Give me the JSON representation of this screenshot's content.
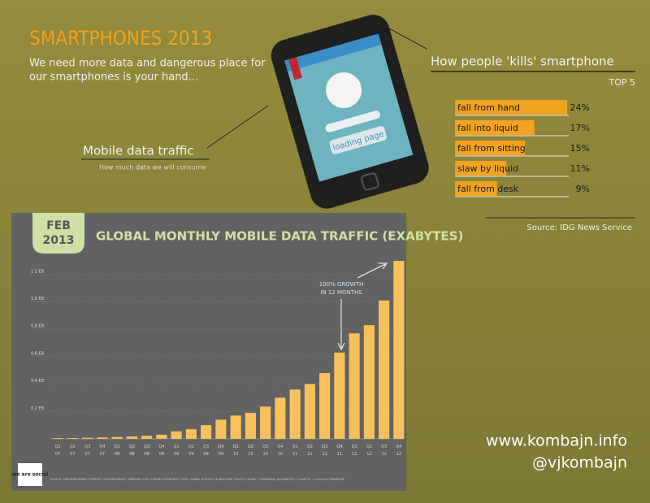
{
  "header": {
    "title": "SMARTPHONES 2013",
    "subtitle_lines": [
      "We need more data and dangerous place for",
      "our smartphones is your hand..."
    ]
  },
  "phone": {
    "screen_text": "loading page"
  },
  "callout": {
    "title": "Mobile data traffic",
    "subtitle": "How much data we will consume"
  },
  "chart_data": [
    {
      "type": "hbar",
      "title": "How people 'kills' smartphone",
      "subtitle": "TOP 5",
      "categories": [
        "fall from hand",
        "fall into liquid",
        "fall from sitting",
        "slaw by liquid",
        "fall from desk"
      ],
      "values": [
        24,
        17,
        15,
        11,
        9
      ],
      "value_labels": [
        "24%",
        "17%",
        "15%",
        "11%",
        "9%"
      ],
      "color": "#f1a21f",
      "xlim": [
        0,
        24
      ],
      "source": "Source: IDG News Service"
    },
    {
      "type": "bar",
      "badge_lines": [
        "FEB",
        "2013"
      ],
      "title": "GLOBAL MONTHLY MOBILE DATA TRAFFIC (EXABYTES)",
      "annotation_lines": [
        "100% GROWTH",
        "IN 12 MONTHS"
      ],
      "categories": [
        "Q1 07",
        "Q2 07",
        "Q3 07",
        "Q4 07",
        "Q1 08",
        "Q2 08",
        "Q3 08",
        "Q4 08",
        "Q1 09",
        "Q2 09",
        "Q3 09",
        "Q4 09",
        "Q1 10",
        "Q2 10",
        "Q3 10",
        "Q4 10",
        "Q1 11",
        "Q2 11",
        "Q3 11",
        "Q4 11",
        "Q1 12",
        "Q2 12",
        "Q3 12",
        "Q4 12"
      ],
      "values": [
        0.005,
        0.006,
        0.008,
        0.01,
        0.013,
        0.017,
        0.022,
        0.03,
        0.055,
        0.07,
        0.1,
        0.14,
        0.17,
        0.19,
        0.235,
        0.3,
        0.36,
        0.4,
        0.48,
        0.63,
        0.77,
        0.83,
        1.01,
        1.3
      ],
      "color": "#f9c15c",
      "ylim": [
        0,
        1.3
      ],
      "yticks": [
        {
          "value": 0.2,
          "label": "0.2 EB"
        },
        {
          "value": 0.4,
          "label": "0.4 EB"
        },
        {
          "value": 0.6,
          "label": "0.6 EB"
        },
        {
          "value": 0.8,
          "label": "0.8 EB"
        },
        {
          "value": 1.0,
          "label": "1.0 EB"
        },
        {
          "value": 1.2,
          "label": "1.2 EB"
        }
      ],
      "grid": true,
      "source": "SOURCE: ERICSSON MOBILITY REPORT, INTERIM UPDATE, FEBRUARY 2013. FIGURES REPRESENT TOTAL GLOBAL MONTHLY MOBILE DATA TRAFFIC (UPLINK + DOWNLINK) IN EXABYTES (1 EXABYTE = 1 BILLION TERABYTES)",
      "logo": "we are social"
    }
  ],
  "footer": {
    "site": "www.kombajn.info",
    "handle": "@vjkombajn"
  }
}
